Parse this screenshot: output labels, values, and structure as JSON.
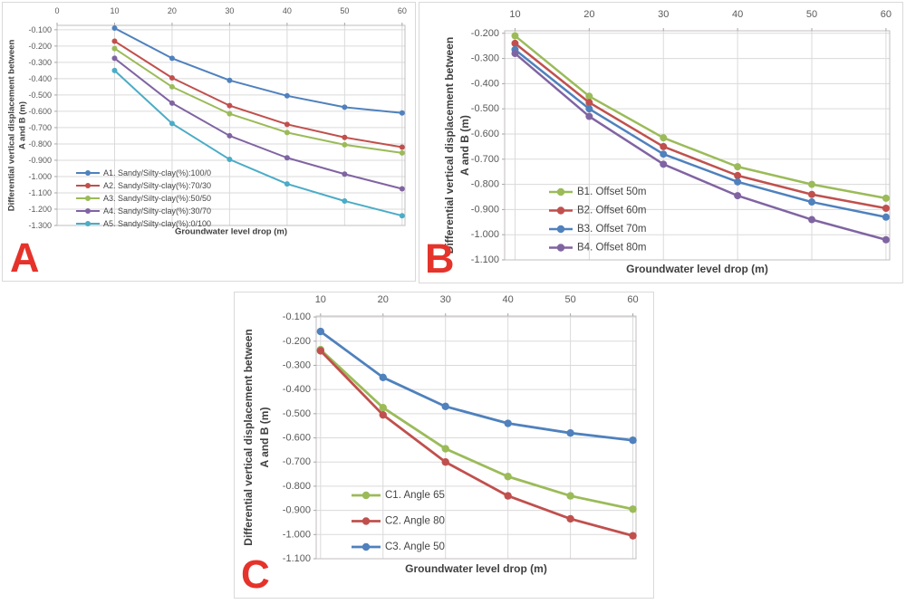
{
  "colors": {
    "series_blue": "#4F81BD",
    "series_red": "#C0504D",
    "series_green": "#9BBB59",
    "series_purple": "#8064A2",
    "series_teal": "#4BACC6",
    "grid": "#DADADA",
    "plot_border": "#C0BEBC",
    "tick_mark": "#A6A6A6",
    "tick_text": "#595959",
    "axis_title_text": "#3F3F3F",
    "legend_text": "#444444",
    "panel_letter": "#E5332B",
    "panel_border": "#D9D9D9",
    "background": "#FFFFFF"
  },
  "chart_data": [
    {
      "panel_label": "A",
      "type": "line",
      "xlabel": "Groundwater level drop (m)",
      "ylabel": "Differential vertical displacement between A and B (m)",
      "ylabel_lines": [
        "Differential vertical displacement between",
        "A and B (m)"
      ],
      "x": [
        10,
        20,
        30,
        40,
        50,
        60
      ],
      "xticks": [
        0,
        10,
        20,
        30,
        40,
        50,
        60
      ],
      "xtick_labels": [
        "0",
        "10",
        "20",
        "30",
        "40",
        "50",
        "60"
      ],
      "xlim": [
        0,
        60.5
      ],
      "ylim": [
        -1.3,
        -0.073
      ],
      "yticks": [
        -0.1,
        -0.2,
        -0.3,
        -0.4,
        -0.5,
        -0.6,
        -0.7,
        -0.8,
        -0.9,
        -1.0,
        -1.1,
        -1.2,
        -1.3
      ],
      "ytick_labels": [
        "-0.100",
        "-0.200",
        "-0.300",
        "-0.400",
        "-0.500",
        "-0.600",
        "-0.700",
        "-0.800",
        "-0.900",
        "-1.000",
        "-1.100",
        "-1.200",
        "-1.300"
      ],
      "grid": true,
      "legend_position": "inside-lower-left",
      "series": [
        {
          "name": "A1. Sandy/Silty-clay(%):100/0",
          "color": "#4F81BD",
          "values": [
            -0.09,
            -0.275,
            -0.41,
            -0.505,
            -0.575,
            -0.61
          ]
        },
        {
          "name": "A2. Sandy/Silty-clay(%):70/30",
          "color": "#C0504D",
          "values": [
            -0.17,
            -0.395,
            -0.565,
            -0.68,
            -0.76,
            -0.82
          ]
        },
        {
          "name": "A3. Sandy/Silty-clay(%):50/50",
          "color": "#9BBB59",
          "values": [
            -0.215,
            -0.45,
            -0.615,
            -0.73,
            -0.805,
            -0.855
          ]
        },
        {
          "name": "A4. Sandy/Silty-clay(%):30/70",
          "color": "#8064A2",
          "values": [
            -0.275,
            -0.55,
            -0.75,
            -0.885,
            -0.985,
            -1.075
          ]
        },
        {
          "name": "A5. Sandy/Silty-clay(%):0/100",
          "color": "#4BACC6",
          "values": [
            -0.35,
            -0.675,
            -0.895,
            -1.045,
            -1.15,
            -1.24
          ]
        }
      ]
    },
    {
      "panel_label": "B",
      "type": "line",
      "xlabel": "Groundwater level drop (m)",
      "ylabel": "Differential vertical displacement between A and B (m)",
      "ylabel_lines": [
        "Differential vertical displacement between",
        "A and B (m)"
      ],
      "x": [
        10,
        20,
        30,
        40,
        50,
        60
      ],
      "xticks": [
        10,
        20,
        30,
        40,
        50,
        60
      ],
      "xtick_labels": [
        "10",
        "20",
        "30",
        "40",
        "50",
        "60"
      ],
      "xlim": [
        8.6,
        60.5
      ],
      "ylim": [
        -1.1,
        -0.19
      ],
      "yticks": [
        -0.2,
        -0.3,
        -0.4,
        -0.5,
        -0.6,
        -0.7,
        -0.8,
        -0.9,
        -1.0,
        -1.1
      ],
      "ytick_labels": [
        "-0.200",
        "-0.300",
        "-0.400",
        "-0.500",
        "-0.600",
        "-0.700",
        "-0.800",
        "-0.900",
        "-1.000",
        "-1.100"
      ],
      "grid": true,
      "legend_position": "inside-lower-left",
      "series": [
        {
          "name": "B1. Offset 50m",
          "color": "#9BBB59",
          "values": [
            -0.21,
            -0.45,
            -0.615,
            -0.73,
            -0.8,
            -0.855
          ]
        },
        {
          "name": "B2. Offset 60m",
          "color": "#C0504D",
          "values": [
            -0.24,
            -0.475,
            -0.65,
            -0.765,
            -0.84,
            -0.895
          ]
        },
        {
          "name": "B3. Offset 70m",
          "color": "#4F81BD",
          "values": [
            -0.265,
            -0.5,
            -0.68,
            -0.79,
            -0.87,
            -0.93
          ]
        },
        {
          "name": "B4. Offset 80m",
          "color": "#8064A2",
          "values": [
            -0.28,
            -0.53,
            -0.72,
            -0.845,
            -0.94,
            -1.02
          ]
        }
      ]
    },
    {
      "panel_label": "C",
      "type": "line",
      "xlabel": "Groundwater level drop (m)",
      "ylabel": "Differential vertical displacement between A and B (m)",
      "ylabel_lines": [
        "Differential vertical displacement between",
        "A and B (m)"
      ],
      "x": [
        10,
        20,
        30,
        40,
        50,
        60
      ],
      "xticks": [
        10,
        20,
        30,
        40,
        50,
        60
      ],
      "xtick_labels": [
        "10",
        "20",
        "30",
        "40",
        "50",
        "60"
      ],
      "xlim": [
        9.3,
        60.5
      ],
      "ylim": [
        -1.1,
        -0.096
      ],
      "yticks": [
        -0.1,
        -0.2,
        -0.3,
        -0.4,
        -0.5,
        -0.6,
        -0.7,
        -0.8,
        -0.9,
        -1.0,
        -1.1
      ],
      "ytick_labels": [
        "-0.100",
        "-0.200",
        "-0.300",
        "-0.400",
        "-0.500",
        "-0.600",
        "-0.700",
        "-0.800",
        "-0.900",
        "-1.000",
        "-1.100"
      ],
      "grid": true,
      "legend_position": "inside-lower-left",
      "series": [
        {
          "name": "C1. Angle 65",
          "color": "#9BBB59",
          "values": [
            -0.235,
            -0.475,
            -0.645,
            -0.76,
            -0.84,
            -0.895
          ]
        },
        {
          "name": "C2. Angle 80",
          "color": "#C0504D",
          "values": [
            -0.24,
            -0.505,
            -0.7,
            -0.84,
            -0.935,
            -1.005
          ]
        },
        {
          "name": "C3. Angle 50",
          "color": "#4F81BD",
          "values": [
            -0.16,
            -0.35,
            -0.47,
            -0.54,
            -0.58,
            -0.61
          ]
        }
      ]
    }
  ]
}
